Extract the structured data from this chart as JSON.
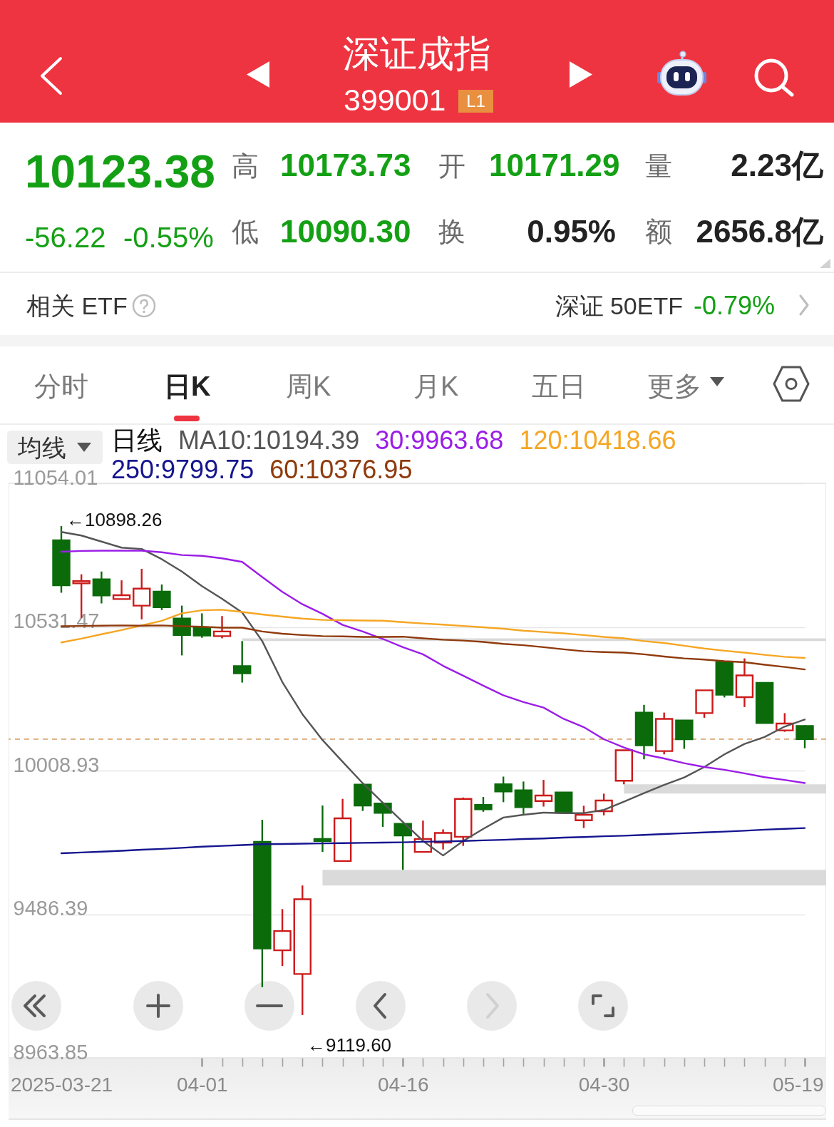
{
  "chart_data": {
    "type": "candlestick",
    "title": "深证成指",
    "subtitle": "399001",
    "legend_title": "日线",
    "legend": "top left",
    "grid": "y",
    "categories": [
      "2025-03-21",
      null,
      null,
      null,
      null,
      null,
      null,
      "04-01",
      null,
      null,
      null,
      null,
      null,
      null,
      null,
      null,
      null,
      "04-16",
      null,
      null,
      null,
      null,
      null,
      null,
      null,
      null,
      null,
      "04-30",
      null,
      null,
      null,
      null,
      null,
      null,
      null,
      null,
      null,
      "05-19"
    ],
    "ohlc": [
      [
        10847,
        10898.26,
        10656,
        10683
      ],
      [
        10690,
        10723,
        10564,
        10698
      ],
      [
        10705,
        10733,
        10617,
        10646
      ],
      [
        10633,
        10701,
        10633,
        10647
      ],
      [
        10609,
        10743,
        10559,
        10671
      ],
      [
        10660,
        10686,
        10593,
        10603
      ],
      [
        10562,
        10609,
        10428,
        10502
      ],
      [
        10527,
        10581,
        10492,
        10500
      ],
      [
        10498,
        10571,
        10490,
        10515
      ],
      [
        10389,
        10480,
        10329,
        10363
      ],
      [
        9750,
        9830,
        9221,
        9362
      ],
      [
        9355,
        9505,
        9298,
        9425
      ],
      [
        9269,
        9591,
        9119.6,
        9541
      ],
      [
        9760,
        9882,
        9713,
        9753
      ],
      [
        9680,
        9906,
        9680,
        9835
      ],
      [
        9958,
        9960,
        9862,
        9882
      ],
      [
        9889,
        9894,
        9804,
        9855
      ],
      [
        9815,
        9816,
        9648,
        9773
      ],
      [
        9713,
        9827,
        9713,
        9760
      ],
      [
        9747,
        9795,
        9722,
        9782
      ],
      [
        9768,
        9911,
        9735,
        9906
      ],
      [
        9884,
        9913,
        9859,
        9868
      ],
      [
        9959,
        9987,
        9894,
        9933
      ],
      [
        9937,
        9969,
        9851,
        9876
      ],
      [
        9898,
        9975,
        9878,
        9918
      ],
      [
        9929,
        9930,
        9854,
        9856
      ],
      [
        9828,
        9881,
        9800,
        9848
      ],
      [
        9861,
        9925,
        9846,
        9900
      ],
      [
        9972,
        10083,
        9959,
        10083
      ],
      [
        10220,
        10248,
        10050,
        10101
      ],
      [
        10080,
        10220,
        10068,
        10197
      ],
      [
        10191,
        10192,
        10088,
        10123
      ],
      [
        10218,
        10302,
        10201,
        10301
      ],
      [
        10404,
        10406,
        10275,
        10285
      ],
      [
        10276,
        10417,
        10240,
        10355
      ],
      [
        10328,
        10329,
        10181,
        10182
      ],
      [
        10155,
        10218,
        10150,
        10180
      ],
      [
        10171.29,
        10173.73,
        10090.3,
        10123.38
      ]
    ],
    "colors": [
      "#0b6b0b",
      "#cc1a1a",
      "#0b6b0b",
      "#cc1a1a",
      "#cc1a1a",
      "#0b6b0b",
      "#0b6b0b",
      "#0b6b0b",
      "#cc1a1a",
      "#0b6b0b",
      "#0b6b0b",
      "#cc1a1a",
      "#cc1a1a",
      "#0b6b0b",
      "#cc1a1a",
      "#0b6b0b",
      "#0b6b0b",
      "#0b6b0b",
      "#cc1a1a",
      "#cc1a1a",
      "#cc1a1a",
      "#0b6b0b",
      "#0b6b0b",
      "#0b6b0b",
      "#cc1a1a",
      "#0b6b0b",
      "#cc1a1a",
      "#cc1a1a",
      "#cc1a1a",
      "#0b6b0b",
      "#cc1a1a",
      "#0b6b0b",
      "#cc1a1a",
      "#0b6b0b",
      "#cc1a1a",
      "#0b6b0b",
      "#cc1a1a",
      "#0b6b0b"
    ],
    "series": [
      {
        "name": "MA10:10194.39",
        "type": "line",
        "color": "#555555",
        "values": [
          10877,
          10864,
          10842,
          10820,
          10815,
          10778,
          10733,
          10680,
          10634,
          10584,
          10480,
          10331,
          10214,
          10120,
          10041,
          9963,
          9892,
          9822,
          9753,
          9700,
          9753,
          9797,
          9838,
          9848,
          9856,
          9854,
          9854,
          9866,
          9896,
          9927,
          9957,
          9984,
          10022,
          10068,
          10106,
          10131,
          10169,
          10194.39
        ]
      },
      {
        "name": "30:9963.68",
        "type": "line",
        "color": "#9b1de6",
        "values": [
          10805,
          10808,
          10809,
          10809,
          10809,
          10803,
          10793,
          10790,
          10781,
          10768,
          10713,
          10659,
          10614,
          10579,
          10539,
          10515,
          10488,
          10458,
          10432,
          10390,
          10354,
          10318,
          10283,
          10258,
          10238,
          10197,
          10167,
          10123,
          10093,
          10068,
          10053,
          10036,
          10022,
          10012,
          9999,
          9985,
          9975,
          9963.68
        ]
      },
      {
        "name": "120:10418.66",
        "type": "line",
        "color": "#f5a623",
        "values": [
          10475,
          10489,
          10505,
          10520,
          10537,
          10554,
          10581,
          10592,
          10594,
          10586,
          10577,
          10569,
          10562,
          10557,
          10556,
          10555,
          10554,
          10549,
          10544,
          10540,
          10535,
          10530,
          10525,
          10518,
          10513,
          10508,
          10502,
          10495,
          10490,
          10480,
          10473,
          10463,
          10453,
          10445,
          10438,
          10430,
          10423,
          10418.66
        ]
      },
      {
        "name": "250:9799.75",
        "type": "line",
        "color": "#15158f",
        "values": [
          9708,
          9711,
          9714,
          9717,
          9721,
          9724,
          9728,
          9732,
          9735,
          9738,
          9741,
          9742,
          9743,
          9744,
          9745,
          9746,
          9747,
          9748,
          9750,
          9751,
          9753,
          9755,
          9757,
          9760,
          9762,
          9765,
          9767,
          9770,
          9772,
          9775,
          9778,
          9781,
          9784,
          9787,
          9790,
          9794,
          9797,
          9799.75
        ]
      },
      {
        "name": "60:10376.95",
        "type": "line",
        "color": "#8f3a0c",
        "values": [
          10534,
          10535,
          10536,
          10537,
          10536,
          10537,
          10534,
          10532,
          10529,
          10529,
          10515,
          10507,
          10502,
          10498,
          10497,
          10495,
          10495,
          10496,
          10490,
          10485,
          10482,
          10477,
          10470,
          10465,
          10458,
          10450,
          10443,
          10440,
          10438,
          10432,
          10424,
          10417,
          10413,
          10407,
          10403,
          10394,
          10386,
          10376.95
        ]
      }
    ],
    "ylim": [
      8963.85,
      11054.01
    ],
    "yticks": [
      8963.85,
      9486.39,
      10008.93,
      10531.47,
      11054.01
    ],
    "ref_lines": [
      {
        "axis": "y",
        "value": 10123.38,
        "color": "#d9a46c",
        "line_style": "dashed"
      }
    ],
    "bands": [
      {
        "axis": "y",
        "from": 10480,
        "to": 10490,
        "color": "#dadada"
      },
      {
        "axis": "y",
        "from": 9925,
        "to": 9959,
        "color": "#dadada"
      },
      {
        "axis": "y",
        "from": 9591,
        "to": 9648,
        "color": "#dadada"
      }
    ],
    "annotations": [
      "L1",
      "10123.38",
      "-56.22",
      "-0.55%",
      "高",
      "10173.73",
      "开",
      "10171.29",
      "量",
      "2.23亿",
      "低",
      "10090.30",
      "换",
      "0.95%",
      "额",
      "2656.8亿",
      "相关 ETF",
      "深证 50ETF",
      "-0.79%",
      "分时",
      "日K",
      "周K",
      "月K",
      "五日",
      "更多",
      "均线",
      "←10898.26",
      "←9119.60"
    ]
  }
}
